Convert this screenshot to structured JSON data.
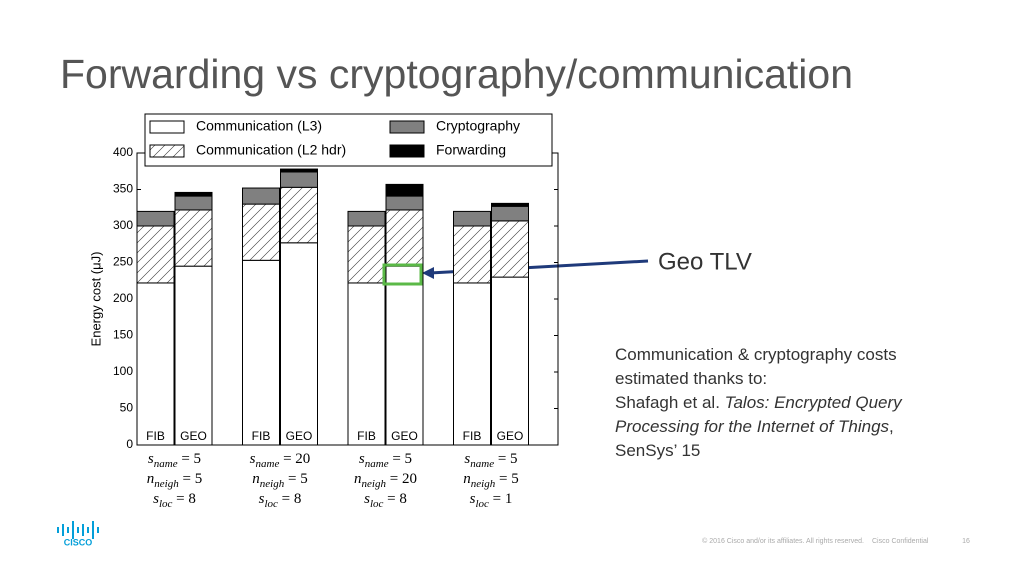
{
  "slide": {
    "title": "Forwarding vs cryptography/communication",
    "callout": "Geo TLV",
    "note": [
      [
        {
          "text": "Communication & cryptography costs"
        }
      ],
      [
        {
          "text": "estimated thanks to:"
        }
      ],
      [
        {
          "text": "Shafagh et al. "
        },
        {
          "text": "Talos: Encrypted Query",
          "italic": true
        }
      ],
      [
        {
          "text": "Processing for the Internet of Things",
          "italic": true
        },
        {
          "text": ","
        }
      ],
      [
        {
          "text": "SenSys’ 15"
        }
      ]
    ],
    "logo": "CISCO",
    "footer": "© 2016  Cisco and/or its affiliates. All rights reserved.",
    "confidential": "Cisco Confidential",
    "page": "16"
  },
  "chart_data": {
    "type": "stacked-bar",
    "ylabel": "Energy cost (μJ)",
    "categories": [
      "FIB",
      "GEO",
      "FIB",
      "GEO",
      "FIB",
      "GEO",
      "FIB",
      "GEO"
    ],
    "groups": [
      [
        "s_name = 5",
        "n_neigh = 5",
        "s_loc = 8"
      ],
      [
        "s_name = 20",
        "n_neigh = 5",
        "s_loc = 8"
      ],
      [
        "s_name = 5",
        "n_neigh = 20",
        "s_loc = 8"
      ],
      [
        "s_name = 5",
        "n_neigh = 5",
        "s_loc = 1"
      ]
    ],
    "series": [
      {
        "name": "Communication (L3)",
        "color": "#ffffff",
        "values": [
          222,
          245,
          253,
          277,
          222,
          245,
          222,
          230
        ]
      },
      {
        "name": "Communication (L2 hdr)",
        "color": "#ffffff",
        "hatch": true,
        "values": [
          78,
          77,
          77,
          76,
          78,
          77,
          78,
          77
        ]
      },
      {
        "name": "Cryptography",
        "color": "#808080",
        "values": [
          20,
          19,
          22,
          21,
          20,
          19,
          20,
          20
        ]
      },
      {
        "name": "Forwarding",
        "color": "#000000",
        "values": [
          0,
          5,
          0,
          4,
          0,
          16,
          0,
          4
        ]
      }
    ],
    "ylim": [
      0,
      400
    ],
    "yticks": [
      0,
      50,
      100,
      150,
      200,
      250,
      300,
      350,
      400
    ]
  }
}
